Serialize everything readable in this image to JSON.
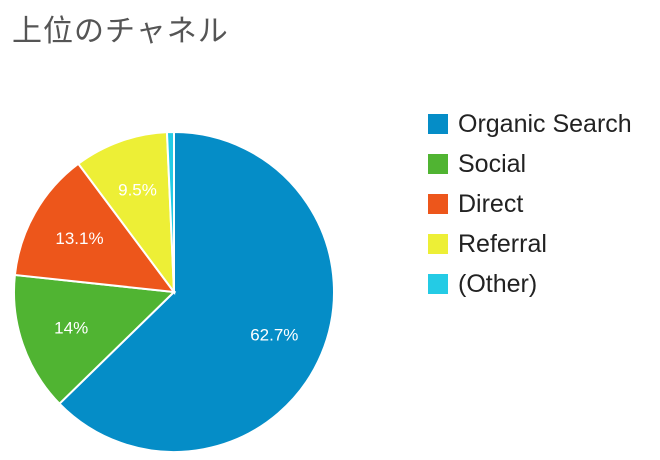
{
  "title": "上位のチャネル",
  "chart_data": {
    "type": "pie",
    "title": "上位のチャネル",
    "legend_position": "right",
    "slices": [
      {
        "name": "Organic Search",
        "value": 62.7,
        "label": "62.7%",
        "color": "#058DC7"
      },
      {
        "name": "Social",
        "value": 14.0,
        "label": "14%",
        "color": "#50B432"
      },
      {
        "name": "Direct",
        "value": 13.1,
        "label": "13.1%",
        "color": "#ED561B"
      },
      {
        "name": "Referral",
        "value": 9.5,
        "label": "9.5%",
        "color": "#EDEF36"
      },
      {
        "name": "(Other)",
        "value": 0.7,
        "label": "",
        "color": "#24CBE5"
      }
    ]
  }
}
